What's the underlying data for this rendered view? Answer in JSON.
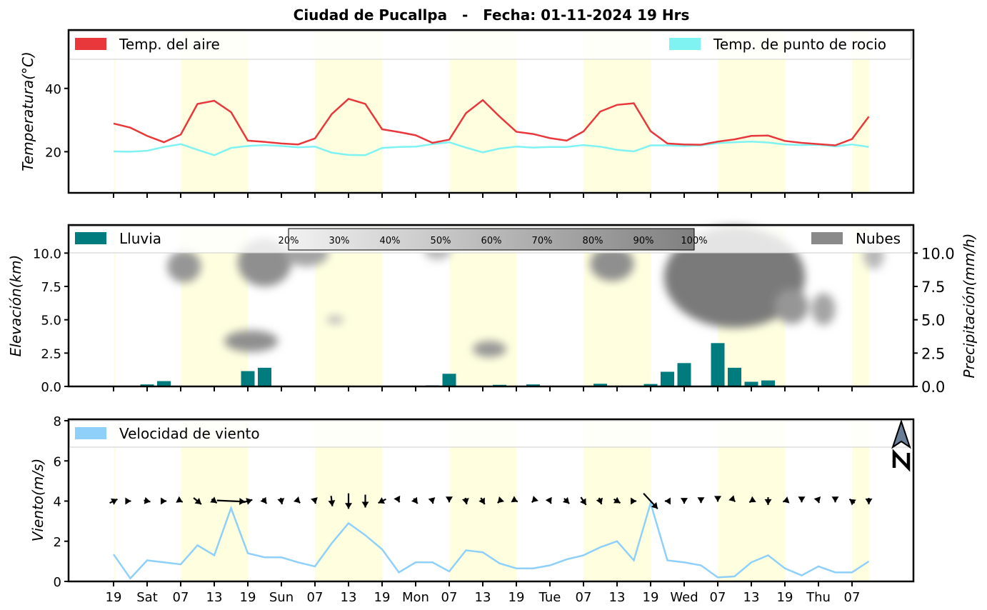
{
  "title": "Ciudad de Pucallpa   -   Fecha: 01-11-2024 19 Hrs",
  "colors": {
    "temp_air": "#e8383b",
    "dew_point": "#7ff2f2",
    "rain": "#007c7f",
    "clouds": "#8a8a8a",
    "wind": "#8fd0fa",
    "day_band": "#ffffe0"
  },
  "x_ticks": [
    "19",
    "Sat",
    "07",
    "13",
    "19",
    "Sun",
    "07",
    "13",
    "19",
    "Mon",
    "07",
    "13",
    "19",
    "Tue",
    "07",
    "13",
    "19",
    "Wed",
    "07",
    "13",
    "19",
    "Thu",
    "07"
  ],
  "chart_data": [
    {
      "type": "line",
      "ylabel": "Temperatura(°C)",
      "yticks": [
        20,
        40
      ],
      "ylim": [
        7,
        58
      ],
      "grid": false,
      "legend_placement": "top",
      "series": [
        {
          "name": "Temp. del aire",
          "values": [
            28.9,
            27.6,
            25.0,
            23.0,
            25.4,
            35.1,
            36.1,
            32.5,
            23.5,
            23.1,
            22.6,
            22.3,
            24.2,
            31.9,
            36.7,
            35.1,
            27.1,
            26.2,
            25.2,
            22.8,
            23.8,
            32.2,
            36.3,
            31.1,
            26.3,
            25.6,
            24.3,
            23.5,
            26.4,
            32.7,
            34.8,
            35.3,
            26.5,
            22.6,
            22.3,
            22.2,
            23.2,
            23.9,
            25.0,
            25.1,
            23.4,
            22.8,
            22.4,
            22.0,
            24.0,
            31.1
          ]
        },
        {
          "name": "Temp. de punto de rocio",
          "values": [
            20.1,
            20.0,
            20.3,
            21.5,
            22.4,
            20.6,
            18.9,
            21.2,
            21.8,
            22.1,
            21.8,
            21.4,
            21.6,
            19.7,
            19.0,
            18.9,
            21.2,
            21.5,
            21.6,
            22.4,
            23.0,
            21.3,
            19.8,
            21.0,
            21.6,
            21.3,
            21.5,
            21.5,
            22.1,
            21.6,
            20.6,
            20.1,
            22.0,
            22.0,
            21.8,
            22.0,
            22.7,
            23.0,
            23.2,
            22.9,
            22.3,
            22.1,
            22.2,
            21.7,
            22.3,
            21.5
          ]
        }
      ]
    },
    {
      "type": "bar",
      "ylabel": "Elevación(km)",
      "ylabel_right": "Precipitación(mm/h)",
      "yticks": [
        "0.0",
        "2.5",
        "5.0",
        "7.5",
        "10.0"
      ],
      "ylim": [
        0,
        12
      ],
      "legend_placement": "top",
      "series": [
        {
          "name": "Lluvia",
          "values": [
            0,
            0.05,
            0.15,
            0.4,
            0,
            0,
            0,
            0,
            1.15,
            1.4,
            0.05,
            0,
            0,
            0,
            0,
            0,
            0,
            0,
            0,
            0.08,
            0.95,
            0,
            0,
            0.12,
            0,
            0.15,
            0,
            0,
            0.03,
            0.2,
            0,
            0,
            0.18,
            1.1,
            1.75,
            0,
            3.25,
            1.4,
            0.35,
            0.45,
            0,
            0,
            0,
            0,
            0,
            0
          ]
        },
        {
          "name": "Nubes",
          "values": []
        }
      ],
      "cloud_scale": [
        "20%",
        "30%",
        "40%",
        "50%",
        "60%",
        "70%",
        "80%",
        "90%",
        "100%"
      ],
      "cloud_blobs": [
        {
          "t": 4.2,
          "elev": 9.0,
          "rt": 1.0,
          "re": 1.2,
          "density": 0.75
        },
        {
          "t": 9.0,
          "elev": 9.3,
          "rt": 1.6,
          "re": 1.8,
          "density": 0.8
        },
        {
          "t": 11.5,
          "elev": 10.0,
          "rt": 1.3,
          "re": 1.0,
          "density": 0.65
        },
        {
          "t": 8.2,
          "elev": 3.4,
          "rt": 1.6,
          "re": 0.8,
          "density": 0.8
        },
        {
          "t": 13.2,
          "elev": 5.0,
          "rt": 0.5,
          "re": 0.3,
          "density": 0.5
        },
        {
          "t": 19.3,
          "elev": 10.2,
          "rt": 0.8,
          "re": 0.7,
          "density": 0.5
        },
        {
          "t": 22.4,
          "elev": 2.8,
          "rt": 1.0,
          "re": 0.6,
          "density": 0.75
        },
        {
          "t": 29.7,
          "elev": 9.2,
          "rt": 1.3,
          "re": 1.3,
          "density": 0.8
        },
        {
          "t": 37.0,
          "elev": 8.2,
          "rt": 4.2,
          "re": 3.8,
          "density": 0.95
        },
        {
          "t": 40.4,
          "elev": 6.0,
          "rt": 1.0,
          "re": 1.3,
          "density": 0.75
        },
        {
          "t": 42.3,
          "elev": 5.8,
          "rt": 0.7,
          "re": 1.2,
          "density": 0.65
        },
        {
          "t": 45.3,
          "elev": 9.8,
          "rt": 0.6,
          "re": 1.0,
          "density": 0.5
        }
      ]
    },
    {
      "type": "line",
      "ylabel": "Viento(m/s)",
      "yticks": [
        0,
        2,
        4,
        6,
        8
      ],
      "ylim": [
        0,
        8
      ],
      "legend_placement": "top-left",
      "series": [
        {
          "name": "Velocidad de viento",
          "values": [
            1.35,
            0.15,
            1.05,
            0.95,
            0.85,
            1.8,
            1.3,
            3.65,
            1.4,
            1.2,
            1.2,
            0.95,
            0.75,
            1.9,
            2.9,
            2.3,
            1.6,
            0.45,
            0.95,
            0.95,
            0.5,
            1.55,
            1.45,
            0.9,
            0.65,
            0.65,
            0.8,
            1.1,
            1.3,
            1.7,
            2.0,
            1.05,
            3.9,
            1.05,
            0.95,
            0.8,
            0.2,
            0.25,
            0.95,
            1.3,
            0.65,
            0.3,
            0.75,
            0.45,
            0.45,
            1.0
          ]
        }
      ],
      "arrows": [
        [
          0.6,
          -0.3
        ],
        [
          0.1,
          0
        ],
        [
          0.5,
          0.1
        ],
        [
          0.4,
          0
        ],
        [
          0.3,
          0.15
        ],
        [
          0.6,
          0.5
        ],
        [
          0.4,
          0.3
        ],
        [
          2.2,
          0.1
        ],
        [
          0.7,
          -0.2
        ],
        [
          0.3,
          0.4
        ],
        [
          0.1,
          0.5
        ],
        [
          0.3,
          0.3
        ],
        [
          0.1,
          0.4
        ],
        [
          0.1,
          0.8
        ],
        [
          0,
          1.2
        ],
        [
          0,
          1.0
        ],
        [
          -0.6,
          0.3
        ],
        [
          0.1,
          0.2
        ],
        [
          0.3,
          0.4
        ],
        [
          0.1,
          0.4
        ],
        [
          0,
          0.2
        ],
        [
          0.1,
          0.5
        ],
        [
          0.3,
          0.5
        ],
        [
          -0.3,
          0.3
        ],
        [
          0.2,
          0.1
        ],
        [
          -0.2,
          0.2
        ],
        [
          0.2,
          0.4
        ],
        [
          0.4,
          0.4
        ],
        [
          0.4,
          0.6
        ],
        [
          0.2,
          0.5
        ],
        [
          0.5,
          0.3
        ],
        [
          0.4,
          0
        ],
        [
          1.1,
          1.2
        ],
        [
          -0.4,
          0
        ],
        [
          0,
          0.4
        ],
        [
          0,
          0.3
        ],
        [
          0,
          0.1
        ],
        [
          0.1,
          0.1
        ],
        [
          -0.3,
          0.2
        ],
        [
          0,
          0.6
        ],
        [
          -0.3,
          0.1
        ],
        [
          0,
          0.2
        ],
        [
          0.1,
          0.3
        ],
        [
          0,
          0.2
        ],
        [
          -0.4,
          -0.3
        ],
        [
          0,
          0.5
        ]
      ]
    }
  ]
}
